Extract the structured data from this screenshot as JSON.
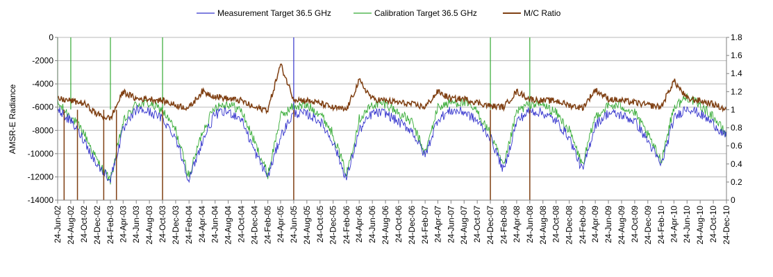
{
  "chart_data": {
    "type": "line",
    "title": "",
    "legend": {
      "placement": "top-center",
      "entries": [
        "Measurement Target 36.5 GHz",
        "Calibration Target 36.5 GHz",
        "M/C Ratio"
      ]
    },
    "y_left": {
      "label": "AMSR-E Radiance",
      "min": -14000,
      "max": 0,
      "step": 2000,
      "tick_labels": [
        "0",
        "-2000",
        "-4000",
        "-6000",
        "-8000",
        "-10000",
        "-12000",
        "-14000"
      ]
    },
    "y_right": {
      "label": "",
      "min": 0,
      "max": 1.8,
      "step": 0.2,
      "tick_labels": [
        "1.8",
        "1.6",
        "1.4",
        "1.2",
        "1",
        "0.8",
        "0.6",
        "0.4",
        "0.2",
        "0"
      ]
    },
    "x_tick_labels": [
      "24-Jun-02",
      "24-Aug-02",
      "24-Oct-02",
      "24-Dec-02",
      "24-Feb-03",
      "24-Apr-03",
      "24-Jun-03",
      "24-Aug-03",
      "24-Oct-03",
      "24-Dec-03",
      "24-Feb-04",
      "24-Apr-04",
      "24-Jun-04",
      "24-Aug-04",
      "24-Oct-04",
      "24-Dec-04",
      "24-Feb-05",
      "24-Apr-05",
      "24-Jun-05",
      "24-Aug-05",
      "24-Oct-05",
      "24-Dec-05",
      "24-Feb-06",
      "24-Apr-06",
      "24-Jun-06",
      "24-Aug-06",
      "24-Oct-06",
      "24-Dec-06",
      "24-Feb-07",
      "24-Apr-07",
      "24-Jun-07",
      "24-Aug-07",
      "24-Oct-07",
      "24-Dec-07",
      "24-Feb-08",
      "24-Apr-08",
      "24-Jun-08",
      "24-Aug-08",
      "24-Oct-08",
      "24-Dec-08",
      "24-Feb-09",
      "24-Apr-09",
      "24-Jun-09",
      "24-Aug-09",
      "24-Oct-09",
      "24-Dec-09",
      "24-Feb-10",
      "24-Apr-10",
      "24-Jun-10",
      "24-Aug-10",
      "24-Oct-10",
      "24-Dec-10"
    ],
    "grid": {
      "horizontal": true,
      "vertical": false
    },
    "series": [
      {
        "name": "Measurement Target 36.5 GHz",
        "axis": "left",
        "color": "#3333cc",
        "x": [
          "24-Jun-02",
          "24-Aug-02",
          "24-Oct-02",
          "24-Dec-02",
          "24-Feb-03",
          "24-Apr-03",
          "24-Jun-03",
          "24-Aug-03",
          "24-Oct-03",
          "24-Dec-03",
          "24-Feb-04",
          "24-Apr-04",
          "24-Jun-04",
          "24-Aug-04",
          "24-Oct-04",
          "24-Dec-04",
          "24-Feb-05",
          "24-Apr-05",
          "24-Jun-05",
          "24-Aug-05",
          "24-Oct-05",
          "24-Dec-05",
          "24-Feb-06",
          "24-Apr-06",
          "24-Jun-06",
          "24-Aug-06",
          "24-Oct-06",
          "24-Dec-06",
          "24-Feb-07",
          "24-Apr-07",
          "24-Jun-07",
          "24-Aug-07",
          "24-Oct-07",
          "24-Dec-07",
          "24-Feb-08",
          "24-Apr-08",
          "24-Jun-08",
          "24-Aug-08",
          "24-Oct-08",
          "24-Dec-08",
          "24-Feb-09",
          "24-Apr-09",
          "24-Jun-09",
          "24-Aug-09",
          "24-Oct-09",
          "24-Dec-09",
          "24-Feb-10",
          "24-Apr-10",
          "24-Jun-10",
          "24-Aug-10",
          "24-Oct-10",
          "24-Dec-10"
        ],
        "values": [
          -6200,
          -7200,
          -8800,
          -11000,
          -12200,
          -8000,
          -6200,
          -6400,
          -7000,
          -8600,
          -12300,
          -9000,
          -6600,
          -6400,
          -7000,
          -9800,
          -12000,
          -8500,
          -6500,
          -6600,
          -7200,
          -9000,
          -12200,
          -8000,
          -6500,
          -6500,
          -7300,
          -8000,
          -10200,
          -7000,
          -6300,
          -6400,
          -7200,
          -8600,
          -11500,
          -7200,
          -6300,
          -6500,
          -7200,
          -8600,
          -11500,
          -7500,
          -6500,
          -6700,
          -7200,
          -8900,
          -11000,
          -7000,
          -6000,
          -6600,
          -7400,
          -8600
        ]
      },
      {
        "name": "Calibration Target 36.5 GHz",
        "axis": "left",
        "color": "#33aa33",
        "x": [
          "24-Jun-02",
          "24-Aug-02",
          "24-Oct-02",
          "24-Dec-02",
          "24-Feb-03",
          "24-Apr-03",
          "24-Jun-03",
          "24-Aug-03",
          "24-Oct-03",
          "24-Dec-03",
          "24-Feb-04",
          "24-Apr-04",
          "24-Jun-04",
          "24-Aug-04",
          "24-Oct-04",
          "24-Dec-04",
          "24-Feb-05",
          "24-Apr-05",
          "24-Jun-05",
          "24-Aug-05",
          "24-Oct-05",
          "24-Dec-05",
          "24-Feb-06",
          "24-Apr-06",
          "24-Jun-06",
          "24-Aug-06",
          "24-Oct-06",
          "24-Dec-06",
          "24-Feb-07",
          "24-Apr-07",
          "24-Jun-07",
          "24-Aug-07",
          "24-Oct-07",
          "24-Dec-07",
          "24-Feb-08",
          "24-Apr-08",
          "24-Jun-08",
          "24-Aug-08",
          "24-Oct-08",
          "24-Dec-08",
          "24-Feb-09",
          "24-Apr-09",
          "24-Jun-09",
          "24-Aug-09",
          "24-Oct-09",
          "24-Dec-09",
          "24-Feb-10",
          "24-Apr-10",
          "24-Jun-10",
          "24-Aug-10",
          "24-Oct-10",
          "24-Dec-10"
        ],
        "values": [
          -5700,
          -6800,
          -8200,
          -10600,
          -12300,
          -7300,
          -5700,
          -5700,
          -6300,
          -8000,
          -12000,
          -8200,
          -5900,
          -5700,
          -6300,
          -9000,
          -11800,
          -6800,
          -5900,
          -5900,
          -6500,
          -8300,
          -11800,
          -7000,
          -5800,
          -5700,
          -6500,
          -7300,
          -10000,
          -6000,
          -5600,
          -5600,
          -6400,
          -8300,
          -11200,
          -6400,
          -5700,
          -5800,
          -6500,
          -8000,
          -11000,
          -6800,
          -5900,
          -5900,
          -6500,
          -8400,
          -10600,
          -6000,
          -5100,
          -5900,
          -6800,
          -8400
        ]
      },
      {
        "name": "M/C Ratio",
        "axis": "right",
        "color": "#7f3f12",
        "x": [
          "24-Jun-02",
          "24-Aug-02",
          "24-Oct-02",
          "24-Dec-02",
          "24-Feb-03",
          "24-Apr-03",
          "24-Jun-03",
          "24-Aug-03",
          "24-Oct-03",
          "24-Dec-03",
          "24-Feb-04",
          "24-Apr-04",
          "24-Jun-04",
          "24-Aug-04",
          "24-Oct-04",
          "24-Dec-04",
          "24-Feb-05",
          "24-Apr-05",
          "24-Jun-05",
          "24-Aug-05",
          "24-Oct-05",
          "24-Dec-05",
          "24-Feb-06",
          "24-Apr-06",
          "24-Jun-06",
          "24-Aug-06",
          "24-Oct-06",
          "24-Dec-06",
          "24-Feb-07",
          "24-Apr-07",
          "24-Jun-07",
          "24-Aug-07",
          "24-Oct-07",
          "24-Dec-07",
          "24-Feb-08",
          "24-Apr-08",
          "24-Jun-08",
          "24-Aug-08",
          "24-Oct-08",
          "24-Dec-08",
          "24-Feb-09",
          "24-Apr-09",
          "24-Jun-09",
          "24-Aug-09",
          "24-Oct-09",
          "24-Dec-09",
          "24-Feb-10",
          "24-Apr-10",
          "24-Jun-10",
          "24-Aug-10",
          "24-Oct-10",
          "24-Dec-10"
        ],
        "values": [
          1.12,
          1.1,
          1.07,
          0.95,
          0.9,
          1.2,
          1.12,
          1.12,
          1.1,
          1.05,
          1.02,
          1.2,
          1.15,
          1.12,
          1.1,
          1.02,
          1.0,
          1.5,
          1.12,
          1.1,
          1.07,
          1.02,
          1.0,
          1.32,
          1.12,
          1.1,
          1.08,
          1.06,
          1.03,
          1.2,
          1.12,
          1.12,
          1.08,
          1.04,
          1.03,
          1.2,
          1.12,
          1.1,
          1.1,
          1.05,
          1.02,
          1.22,
          1.12,
          1.1,
          1.08,
          1.05,
          1.03,
          1.32,
          1.12,
          1.1,
          1.06,
          1.0
        ]
      }
    ],
    "spikes_left": [
      {
        "x": "24-Jun-02",
        "series": "Calibration Target 36.5 GHz"
      },
      {
        "x": "24-Aug-02",
        "series": "Calibration Target 36.5 GHz"
      },
      {
        "x": "24-Feb-03",
        "series": "Calibration Target 36.5 GHz"
      },
      {
        "x": "24-Oct-03",
        "series": "Calibration Target 36.5 GHz"
      },
      {
        "x": "24-Jun-05",
        "series": "Measurement Target 36.5 GHz"
      },
      {
        "x": "24-Dec-07",
        "series": "Calibration Target 36.5 GHz"
      },
      {
        "x": "24-Jun-08",
        "series": "Calibration Target 36.5 GHz"
      }
    ],
    "spikes_right_zero": [
      "24-Jul-02",
      "24-Sep-02",
      "24-Jan-03",
      "24-Mar-03",
      "24-Oct-03",
      "24-Jun-05",
      "24-Dec-07",
      "24-Jun-08"
    ]
  }
}
